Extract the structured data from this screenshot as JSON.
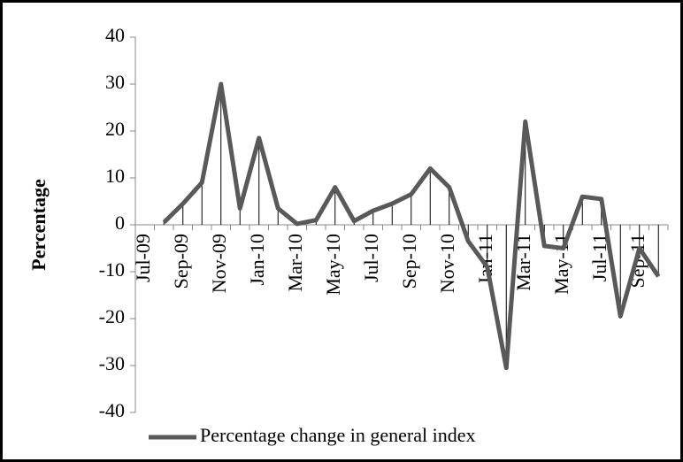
{
  "chart_data": {
    "type": "line",
    "y_label": "Percentage",
    "categories": [
      "Jul-09",
      null,
      "Sep-09",
      null,
      "Nov-09",
      null,
      "Jan-10",
      null,
      "Mar-10",
      null,
      "May-10",
      null,
      "Jul-10",
      null,
      "Sep-10",
      null,
      "Nov-10",
      null,
      "Jan-11",
      null,
      "Mar-11",
      null,
      "May-11",
      null,
      "Jul-11",
      null,
      "Sep-11",
      null
    ],
    "series": [
      {
        "name": "Percentage change in general index",
        "color": "#595959",
        "values": [
          null,
          0.5,
          4.5,
          9,
          30,
          3.5,
          18.5,
          3.5,
          0.2,
          1,
          8,
          0.8,
          3,
          4.5,
          6.5,
          12,
          8,
          -3.5,
          -9,
          -30.5,
          22,
          -4.5,
          -5,
          6,
          5.5,
          -19.5,
          -5,
          -11
        ]
      }
    ],
    "ylim": [
      -40,
      40
    ],
    "yticks": [
      -40,
      -30,
      -20,
      -10,
      0,
      10,
      20,
      30,
      40
    ],
    "drop_lines": true,
    "legend": "bottom"
  }
}
